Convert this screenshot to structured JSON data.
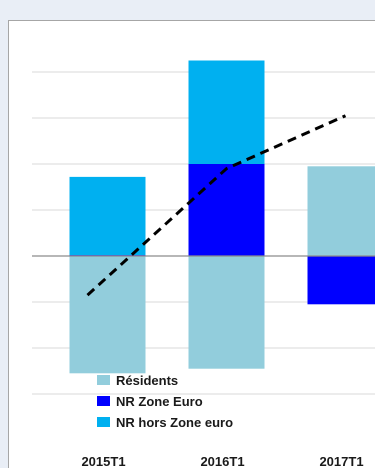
{
  "chart_data": {
    "type": "bar",
    "stacked": true,
    "categories": [
      "2015T1",
      "2016T1",
      "2017T1"
    ],
    "series": [
      {
        "name": "Résidents",
        "color": "#92cddc",
        "values": [
          -2.55,
          -2.45,
          1.95
        ]
      },
      {
        "name": "NR Zone Euro",
        "color": "#0000ff",
        "values": [
          0.02,
          2.0,
          -1.05
        ]
      },
      {
        "name": "NR hors Zone euro",
        "color": "#00b0f0",
        "values": [
          1.7,
          2.25,
          0
        ]
      }
    ],
    "line": {
      "style": "dashed",
      "color": "#000000",
      "values": [
        -0.85,
        1.9,
        3.05
      ]
    },
    "ylim": [
      -3.1,
      4.6
    ],
    "grid": true,
    "legend_position": "bottom-center"
  }
}
